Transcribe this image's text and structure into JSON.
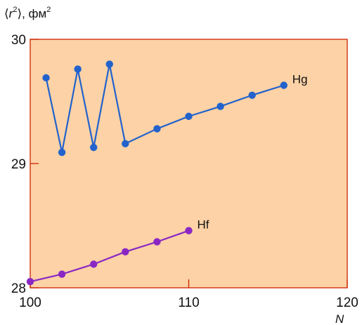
{
  "chart_data": {
    "type": "line",
    "ylabel": "⟨r²⟩, фм²",
    "ylabel_parts": {
      "open": "⟨",
      "var": "r",
      "sup1": "2",
      "close": "⟩, фм",
      "sup2": "2"
    },
    "xlabel": "N",
    "xlim": [
      100,
      120
    ],
    "ylim": [
      28,
      30
    ],
    "xticks": [
      100,
      110,
      120
    ],
    "yticks": [
      28,
      29,
      30
    ],
    "grid": false,
    "colors": {
      "background": "#fcd2a6",
      "frame": "#cc2200"
    },
    "series": [
      {
        "name": "Hg",
        "color": "#2262cc",
        "x": [
          101,
          102,
          103,
          104,
          105,
          106,
          108,
          110,
          112,
          114,
          116
        ],
        "y": [
          29.69,
          29.09,
          29.76,
          29.13,
          29.8,
          29.16,
          29.28,
          29.38,
          29.46,
          29.55,
          29.63
        ]
      },
      {
        "name": "Hf",
        "color": "#8a27c4",
        "x": [
          100,
          102,
          104,
          106,
          108,
          110
        ],
        "y": [
          28.05,
          28.11,
          28.19,
          28.29,
          28.37,
          28.46
        ]
      }
    ]
  }
}
